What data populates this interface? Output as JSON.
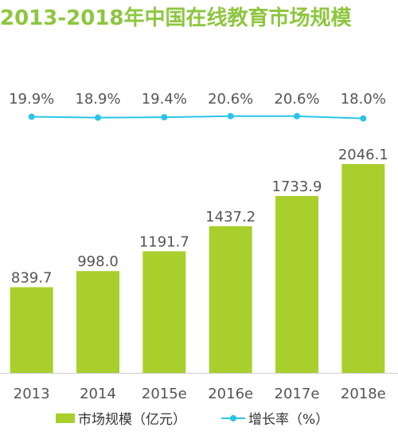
{
  "title": "2013-2018年中国在线教育市场规模",
  "colors": {
    "title": "#8dc63f",
    "bar": "#a8cf2c",
    "line": "#2bc4e8",
    "text": "#555555",
    "axis": "#cccccc"
  },
  "legend": {
    "bar_label": "市场规模（亿元）",
    "line_label": "增长率（%）"
  },
  "chart_data": {
    "type": "bar",
    "categories": [
      "2013",
      "2014",
      "2015e",
      "2016e",
      "2017e",
      "2018e"
    ],
    "series": [
      {
        "name": "市场规模（亿元）",
        "type": "bar",
        "values": [
          839.7,
          998.0,
          1191.7,
          1437.2,
          1733.9,
          2046.1
        ],
        "labels": [
          "839.7",
          "998.0",
          "1191.7",
          "1437.2",
          "1733.9",
          "2046.1"
        ]
      },
      {
        "name": "增长率（%）",
        "type": "line",
        "values": [
          19.9,
          18.9,
          19.4,
          20.6,
          20.6,
          18.0
        ],
        "labels": [
          "19.9%",
          "18.9%",
          "19.4%",
          "20.6%",
          "20.6%",
          "18.0%"
        ]
      }
    ],
    "legend_position": "bottom",
    "grid": false
  }
}
